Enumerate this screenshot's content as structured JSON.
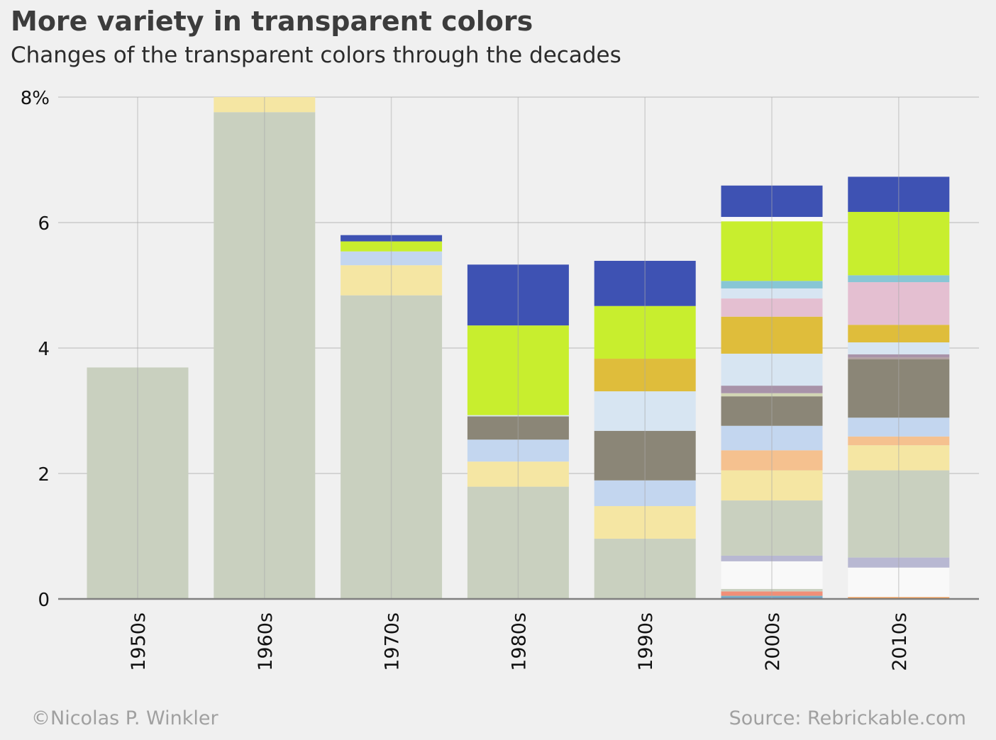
{
  "title": "More variety in transparent colors",
  "subtitle": "Changes of the transparent colors through the decades",
  "footer": {
    "credit": "©Nicolas P. Winkler",
    "source": "Source: Rebrickable.com"
  },
  "chart_data": {
    "type": "bar",
    "stacked": true,
    "categories": [
      "1950s",
      "1960s",
      "1970s",
      "1980s",
      "1990s",
      "2000s",
      "2010s"
    ],
    "ylim": [
      0,
      8
    ],
    "yticks": [
      0,
      2,
      4,
      6,
      8
    ],
    "ytick_labels": [
      "0",
      "2",
      "4",
      "6",
      "8%"
    ],
    "grid": true,
    "legend": "none",
    "stacks": [
      [
        {
          "color": "#c9d0bf",
          "value": 3.69
        }
      ],
      [
        {
          "color": "#c9d0bf",
          "value": 7.76
        },
        {
          "color": "#f5e6a3",
          "value": 0.24
        }
      ],
      [
        {
          "color": "#c9d0bf",
          "value": 4.84
        },
        {
          "color": "#f5e6a3",
          "value": 0.48
        },
        {
          "color": "#c3d6ef",
          "value": 0.22
        },
        {
          "color": "#c8ee2e",
          "value": 0.16
        },
        {
          "color": "#3e52b3",
          "value": 0.1
        }
      ],
      [
        {
          "color": "#c9d0bf",
          "value": 1.79
        },
        {
          "color": "#f5e6a3",
          "value": 0.4
        },
        {
          "color": "#c3d6ef",
          "value": 0.35
        },
        {
          "color": "#8b8677",
          "value": 0.37
        },
        {
          "color": "#d7e5f2",
          "value": 0.02
        },
        {
          "color": "#c8ee2e",
          "value": 1.43
        },
        {
          "color": "#3e52b3",
          "value": 0.97
        }
      ],
      [
        {
          "color": "#c9d0bf",
          "value": 0.96
        },
        {
          "color": "#f5e6a3",
          "value": 0.52
        },
        {
          "color": "#c3d6ef",
          "value": 0.41
        },
        {
          "color": "#8b8677",
          "value": 0.79
        },
        {
          "color": "#d7e5f2",
          "value": 0.63
        },
        {
          "color": "#dfbd3b",
          "value": 0.52
        },
        {
          "color": "#c8ee2e",
          "value": 0.84
        },
        {
          "color": "#3e52b3",
          "value": 0.72
        }
      ],
      [
        {
          "color": "#3e52b3",
          "value": 0.02
        },
        {
          "color": "#7ab1c4",
          "value": 0.03
        },
        {
          "color": "#f08f78",
          "value": 0.07
        },
        {
          "color": "#c9d0bf",
          "value": 0.04
        },
        {
          "color": "#f9f9f9",
          "value": 0.44
        },
        {
          "color": "#b8b8d2",
          "value": 0.09
        },
        {
          "color": "#c9d0bf",
          "value": 0.88
        },
        {
          "color": "#f5e6a3",
          "value": 0.48
        },
        {
          "color": "#f5c18f",
          "value": 0.32
        },
        {
          "color": "#c3d6ef",
          "value": 0.39
        },
        {
          "color": "#8b8677",
          "value": 0.47
        },
        {
          "color": "#d2d6b4",
          "value": 0.05
        },
        {
          "color": "#a893a9",
          "value": 0.12
        },
        {
          "color": "#d7e5f2",
          "value": 0.51
        },
        {
          "color": "#dfbd3b",
          "value": 0.59
        },
        {
          "color": "#e4bfd1",
          "value": 0.29
        },
        {
          "color": "#d7e5f2",
          "value": 0.16
        },
        {
          "color": "#88c6d5",
          "value": 0.12
        },
        {
          "color": "#c8ee2e",
          "value": 0.95
        },
        {
          "color": "#f9f9f9",
          "value": 0.07
        },
        {
          "color": "#3e52b3",
          "value": 0.5
        }
      ],
      [
        {
          "color": "#3e52b3",
          "value": 0.01
        },
        {
          "color": "#f09a50",
          "value": 0.02
        },
        {
          "color": "#f9f9f9",
          "value": 0.47
        },
        {
          "color": "#b8b8d2",
          "value": 0.16
        },
        {
          "color": "#c9d0bf",
          "value": 1.39
        },
        {
          "color": "#f5e6a3",
          "value": 0.4
        },
        {
          "color": "#f5c18f",
          "value": 0.14
        },
        {
          "color": "#c3d6ef",
          "value": 0.3
        },
        {
          "color": "#8b8677",
          "value": 0.93
        },
        {
          "color": "#b09f9f",
          "value": 0.03
        },
        {
          "color": "#a893a9",
          "value": 0.05
        },
        {
          "color": "#d7e5f2",
          "value": 0.19
        },
        {
          "color": "#dfbd3b",
          "value": 0.28
        },
        {
          "color": "#e4bfd1",
          "value": 0.68
        },
        {
          "color": "#88c6d5",
          "value": 0.11
        },
        {
          "color": "#c8ee2e",
          "value": 1.01
        },
        {
          "color": "#3e52b3",
          "value": 0.56
        }
      ]
    ]
  }
}
